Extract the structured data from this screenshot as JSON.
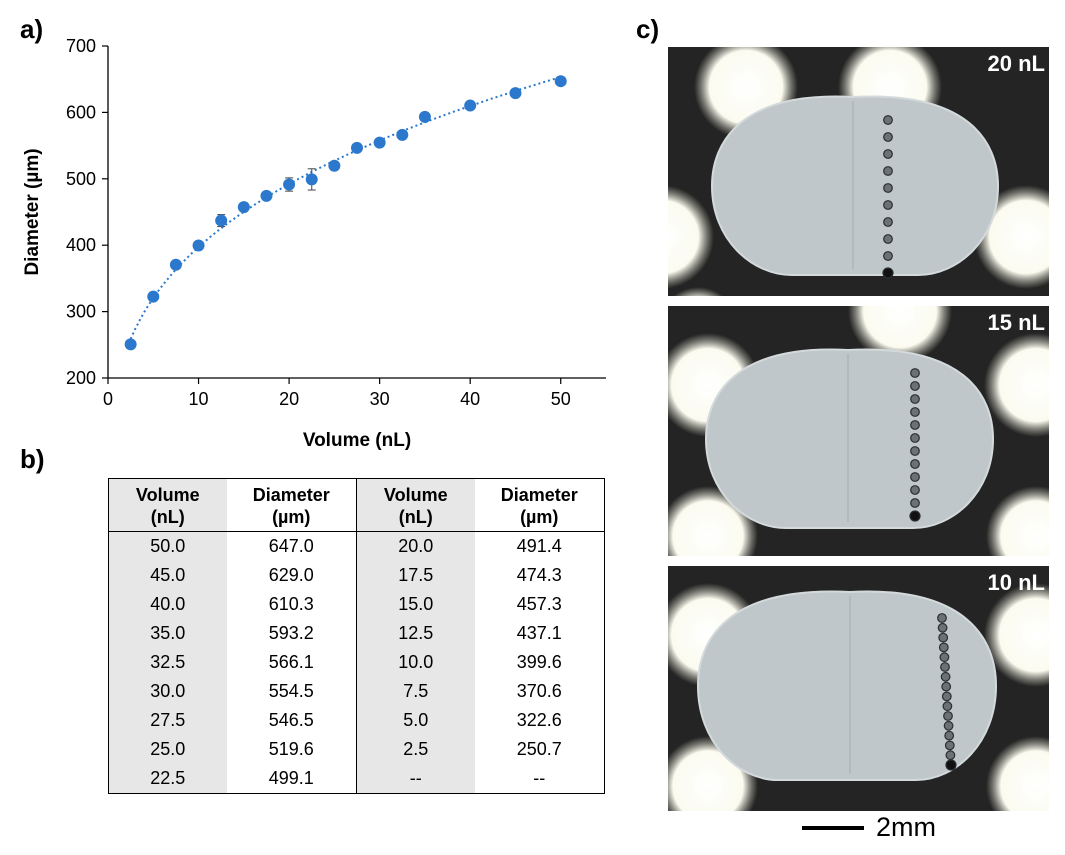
{
  "panel_labels": {
    "a": "a)",
    "b": "b)",
    "c": "c)"
  },
  "chart_data": {
    "type": "scatter",
    "xlabel": "Volume (nL)",
    "ylabel": "Diameter (µm)",
    "xlim": [
      0,
      55
    ],
    "ylim": [
      200,
      700
    ],
    "xticks": [
      0,
      10,
      20,
      30,
      40,
      50
    ],
    "yticks": [
      200,
      300,
      400,
      500,
      600,
      700
    ],
    "grid": false,
    "legend": "none",
    "marker_color": "#2b78cc",
    "trendline": "dotted power fit",
    "series": [
      {
        "x": [
          2.5,
          5.0,
          7.5,
          10.0,
          12.5,
          15.0,
          17.5,
          20.0,
          22.5,
          25.0,
          27.5,
          30.0,
          32.5,
          35.0,
          40.0,
          45.0,
          50.0
        ],
        "y": [
          250.7,
          322.6,
          370.6,
          399.6,
          437.1,
          457.3,
          474.3,
          491.4,
          499.1,
          519.6,
          546.5,
          554.5,
          566.1,
          593.2,
          610.3,
          629.0,
          647.0
        ],
        "error": [
          4,
          5,
          5,
          5,
          9,
          6,
          5,
          10,
          16,
          6,
          5,
          6,
          5,
          5,
          5,
          5,
          5
        ]
      }
    ]
  },
  "table": {
    "headers": [
      [
        "Volume",
        "(nL)"
      ],
      [
        "Diameter",
        "(µm)"
      ],
      [
        "Volume",
        "(nL)"
      ],
      [
        "Diameter",
        "(µm)"
      ]
    ],
    "rows": [
      [
        "50.0",
        "647.0",
        "20.0",
        "491.4"
      ],
      [
        "45.0",
        "629.0",
        "17.5",
        "474.3"
      ],
      [
        "40.0",
        "610.3",
        "15.0",
        "457.3"
      ],
      [
        "35.0",
        "593.2",
        "12.5",
        "437.1"
      ],
      [
        "32.5",
        "566.1",
        "10.0",
        "399.6"
      ],
      [
        "30.0",
        "554.5",
        "7.5",
        "370.6"
      ],
      [
        "27.5",
        "546.5",
        "5.0",
        "322.6"
      ],
      [
        "25.0",
        "519.6",
        "2.5",
        "250.7"
      ],
      [
        "22.5",
        "499.1",
        "--",
        "--"
      ]
    ]
  },
  "photos": [
    {
      "label": "20 nL",
      "spots": 10
    },
    {
      "label": "15 nL",
      "spots": 12
    },
    {
      "label": "10 nL",
      "spots": 16
    }
  ],
  "scale_bar": {
    "label": "2mm"
  },
  "colors": {
    "marker": "#2b78cc",
    "tissue": "#bfc7ca",
    "slide": "#242424"
  }
}
